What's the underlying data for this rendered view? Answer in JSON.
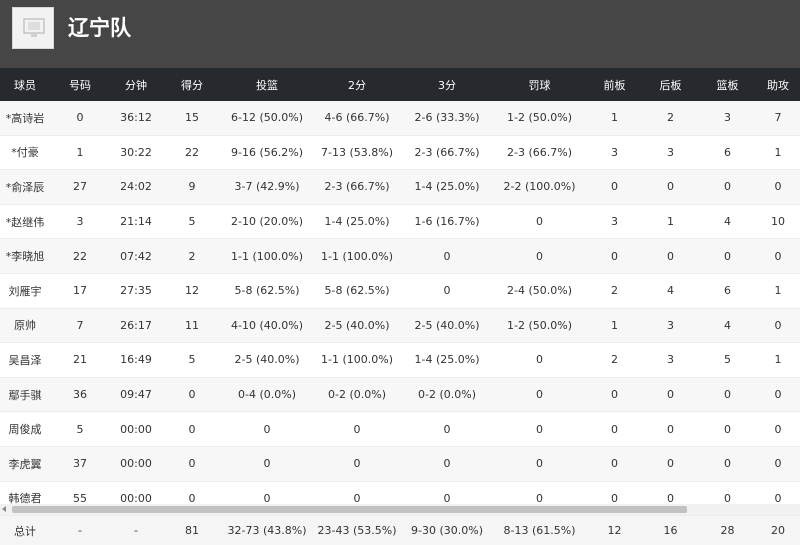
{
  "team": {
    "name": "辽宁队",
    "logo_icon": "team-logo-placeholder-icon"
  },
  "columns": [
    "球员",
    "号码",
    "分钟",
    "得分",
    "投篮",
    "2分",
    "3分",
    "罚球",
    "前板",
    "后板",
    "篮板",
    "助攻"
  ],
  "players": [
    [
      "*高诗岩",
      "0",
      "36:12",
      "15",
      "6-12 (50.0%)",
      "4-6 (66.7%)",
      "2-6 (33.3%)",
      "1-2 (50.0%)",
      "1",
      "2",
      "3",
      "7"
    ],
    [
      "*付豪",
      "1",
      "30:22",
      "22",
      "9-16 (56.2%)",
      "7-13 (53.8%)",
      "2-3 (66.7%)",
      "2-3 (66.7%)",
      "3",
      "3",
      "6",
      "1"
    ],
    [
      "*俞泽辰",
      "27",
      "24:02",
      "9",
      "3-7 (42.9%)",
      "2-3 (66.7%)",
      "1-4 (25.0%)",
      "2-2 (100.0%)",
      "0",
      "0",
      "0",
      "0"
    ],
    [
      "*赵继伟",
      "3",
      "21:14",
      "5",
      "2-10 (20.0%)",
      "1-4 (25.0%)",
      "1-6 (16.7%)",
      "0",
      "3",
      "1",
      "4",
      "10"
    ],
    [
      "*李晓旭",
      "22",
      "07:42",
      "2",
      "1-1 (100.0%)",
      "1-1 (100.0%)",
      "0",
      "0",
      "0",
      "0",
      "0",
      "0"
    ],
    [
      "刘雁宇",
      "17",
      "27:35",
      "12",
      "5-8 (62.5%)",
      "5-8 (62.5%)",
      "0",
      "2-4 (50.0%)",
      "2",
      "4",
      "6",
      "1"
    ],
    [
      "原帅",
      "7",
      "26:17",
      "11",
      "4-10 (40.0%)",
      "2-5 (40.0%)",
      "2-5 (40.0%)",
      "1-2 (50.0%)",
      "1",
      "3",
      "4",
      "0"
    ],
    [
      "吴昌泽",
      "21",
      "16:49",
      "5",
      "2-5 (40.0%)",
      "1-1 (100.0%)",
      "1-4 (25.0%)",
      "0",
      "2",
      "3",
      "5",
      "1"
    ],
    [
      "鄢手骐",
      "36",
      "09:47",
      "0",
      "0-4 (0.0%)",
      "0-2 (0.0%)",
      "0-2 (0.0%)",
      "0",
      "0",
      "0",
      "0",
      "0"
    ],
    [
      "周俊成",
      "5",
      "00:00",
      "0",
      "0",
      "0",
      "0",
      "0",
      "0",
      "0",
      "0",
      "0"
    ],
    [
      "李虎翼",
      "37",
      "00:00",
      "0",
      "0",
      "0",
      "0",
      "0",
      "0",
      "0",
      "0",
      "0"
    ],
    [
      "韩德君",
      "55",
      "00:00",
      "0",
      "0",
      "0",
      "0",
      "0",
      "0",
      "0",
      "0",
      "0"
    ]
  ],
  "totals": [
    "总计",
    "-",
    "-",
    "81",
    "32-73 (43.8%)",
    "23-43 (53.5%)",
    "9-30 (30.0%)",
    "8-13 (61.5%)",
    "12",
    "16",
    "28",
    "20"
  ]
}
